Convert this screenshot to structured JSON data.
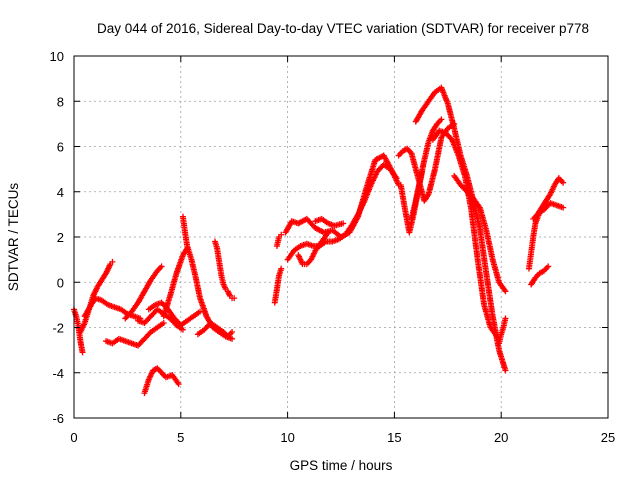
{
  "chart_data": {
    "type": "scatter",
    "title": "Day 044 of 2016, Sidereal Day-to-day VTEC variation (SDTVAR) for receiver p778",
    "xlabel": "GPS time / hours",
    "ylabel": "SDTVAR / TECUs",
    "xlim": [
      0,
      25
    ],
    "ylim": [
      -6,
      10
    ],
    "x_ticks": [
      0,
      5,
      10,
      15,
      20,
      25
    ],
    "y_ticks": [
      -6,
      -4,
      -2,
      0,
      2,
      4,
      6,
      8,
      10
    ],
    "x_tick_labels": [
      "0",
      "5",
      "10",
      "15",
      "20",
      "25"
    ],
    "y_tick_labels": [
      "-6",
      "-4",
      "-2",
      "0",
      "2",
      "4",
      "6",
      "8",
      "10"
    ],
    "grid": true,
    "legend": "none",
    "marker": "+",
    "color": "#ff0000",
    "series": [
      {
        "x": [
          0.0,
          0.1,
          0.2,
          0.3,
          0.4
        ],
        "y": [
          -1.2,
          -1.5,
          -1.9,
          -2.6,
          -3.1
        ]
      },
      {
        "x": [
          0.3,
          0.5,
          0.7,
          0.9,
          1.1,
          1.3,
          1.5,
          1.7,
          1.8
        ],
        "y": [
          -2.2,
          -1.8,
          -1.2,
          -0.6,
          -0.2,
          0.1,
          0.4,
          0.8,
          0.9
        ]
      },
      {
        "x": [
          0.5,
          0.8,
          1.0,
          1.3,
          1.6,
          1.9,
          2.2,
          2.5,
          2.8,
          3.1
        ],
        "y": [
          -1.5,
          -1.0,
          -0.7,
          -0.8,
          -1.0,
          -1.1,
          -1.2,
          -1.4,
          -1.5,
          -1.6
        ]
      },
      {
        "x": [
          1.5,
          1.8,
          2.1,
          2.4,
          2.7,
          3.0,
          3.3,
          3.6,
          3.9,
          4.2
        ],
        "y": [
          -2.6,
          -2.7,
          -2.5,
          -2.6,
          -2.7,
          -2.8,
          -2.5,
          -2.2,
          -2.0,
          -1.8
        ]
      },
      {
        "x": [
          2.4,
          2.7,
          3.0,
          3.3,
          3.6,
          3.9,
          4.1
        ],
        "y": [
          -1.6,
          -1.3,
          -0.9,
          -0.4,
          0.1,
          0.5,
          0.7
        ]
      },
      {
        "x": [
          3.0,
          3.3,
          3.6,
          3.9,
          4.2,
          4.5,
          4.8,
          5.1
        ],
        "y": [
          -1.7,
          -1.8,
          -1.5,
          -1.2,
          -1.4,
          -1.6,
          -1.9,
          -2.1
        ]
      },
      {
        "x": [
          3.5,
          3.8,
          4.1,
          4.4,
          4.7,
          5.0,
          5.3,
          5.6,
          5.9
        ],
        "y": [
          -1.2,
          -1.0,
          -0.9,
          -1.2,
          -1.6,
          -1.9,
          -1.7,
          -1.5,
          -1.3
        ]
      },
      {
        "x": [
          3.3,
          3.5,
          3.7,
          3.9,
          4.1,
          4.3,
          4.6,
          4.9
        ],
        "y": [
          -4.9,
          -4.3,
          -3.9,
          -3.8,
          -4.0,
          -4.2,
          -4.1,
          -4.5
        ]
      },
      {
        "x": [
          4.2,
          4.5,
          4.8,
          5.1,
          5.3
        ],
        "y": [
          -1.5,
          -0.6,
          0.4,
          1.2,
          1.5
        ]
      },
      {
        "x": [
          5.1,
          5.2,
          5.3,
          5.5,
          5.7,
          5.9,
          6.2,
          6.5,
          6.8,
          7.1,
          7.4
        ],
        "y": [
          2.9,
          2.2,
          1.6,
          1.0,
          0.2,
          -0.7,
          -1.5,
          -2.0,
          -2.2,
          -2.4,
          -2.5
        ]
      },
      {
        "x": [
          5.8,
          6.1,
          6.4,
          6.7,
          7.0,
          7.2,
          7.4
        ],
        "y": [
          -2.3,
          -2.1,
          -1.8,
          -2.0,
          -2.2,
          -2.4,
          -2.2
        ]
      },
      {
        "x": [
          6.6,
          6.7,
          6.8,
          6.9,
          7.0,
          7.1,
          7.2,
          7.3,
          7.4,
          7.5
        ],
        "y": [
          1.8,
          1.5,
          0.9,
          0.3,
          -0.1,
          -0.3,
          -0.4,
          -0.6,
          -0.7,
          -0.7
        ]
      },
      {
        "x": [
          9.4,
          9.5,
          9.6,
          9.7
        ],
        "y": [
          -0.9,
          -0.3,
          0.3,
          0.6
        ]
      },
      {
        "x": [
          9.5,
          9.6,
          9.7
        ],
        "y": [
          1.6,
          2.0,
          2.1
        ]
      },
      {
        "x": [
          9.9,
          10.2,
          10.5,
          10.9,
          11.3,
          11.7,
          12.1,
          12.5,
          12.9,
          13.3,
          13.7,
          14.1,
          14.5,
          14.9,
          15.2
        ],
        "y": [
          2.2,
          2.7,
          2.6,
          2.8,
          2.4,
          2.2,
          2.3,
          2.0,
          2.2,
          2.9,
          4.2,
          5.4,
          5.6,
          4.9,
          4.3
        ]
      },
      {
        "x": [
          10.0,
          10.3,
          10.6,
          10.9,
          11.2,
          11.5,
          11.8,
          12.1,
          12.4,
          12.7,
          13.0,
          13.3,
          13.6,
          13.9,
          14.2,
          14.5,
          14.8,
          15.1
        ],
        "y": [
          1.0,
          1.4,
          1.6,
          1.7,
          1.6,
          1.6,
          1.8,
          1.8,
          1.9,
          2.1,
          2.5,
          3.0,
          3.6,
          4.3,
          4.9,
          5.2,
          5.0,
          4.6
        ]
      },
      {
        "x": [
          10.5,
          10.7,
          10.9,
          11.1,
          11.3,
          11.6,
          11.9
        ],
        "y": [
          1.2,
          0.8,
          0.8,
          1.0,
          1.4,
          1.8,
          2.2
        ]
      },
      {
        "x": [
          11.3,
          11.6,
          11.9,
          12.2,
          12.6
        ],
        "y": [
          2.7,
          2.8,
          2.6,
          2.5,
          2.6
        ]
      },
      {
        "x": [
          15.2,
          15.4,
          15.6,
          15.8,
          16.0,
          16.2,
          16.4,
          16.6,
          16.9,
          17.2,
          17.5,
          17.8
        ],
        "y": [
          5.6,
          5.8,
          5.9,
          5.7,
          5.0,
          4.3,
          3.6,
          3.9,
          5.0,
          6.4,
          6.8,
          7.0
        ]
      },
      {
        "x": [
          15.3,
          15.5,
          15.7,
          15.9,
          16.1,
          16.3
        ],
        "y": [
          4.3,
          3.2,
          2.2,
          3.0,
          4.0,
          4.9
        ]
      },
      {
        "x": [
          15.8,
          16.0,
          16.2,
          16.4,
          16.6,
          16.8,
          17.0,
          17.2
        ],
        "y": [
          2.8,
          3.6,
          4.5,
          5.4,
          6.2,
          6.7,
          7.0,
          7.2
        ]
      },
      {
        "x": [
          16.0,
          16.3,
          16.6,
          16.9,
          17.2,
          17.5,
          17.8,
          18.1,
          18.4,
          18.7,
          19.0,
          19.3,
          19.6,
          19.9,
          20.2
        ],
        "y": [
          7.1,
          7.6,
          8.0,
          8.4,
          8.6,
          7.9,
          6.8,
          5.6,
          4.7,
          3.6,
          2.4,
          0.4,
          -1.5,
          -3.0,
          -3.9
        ]
      },
      {
        "x": [
          16.8,
          17.1,
          17.4,
          17.7,
          18.0,
          18.3,
          18.6,
          18.9,
          19.2,
          19.5,
          19.8
        ],
        "y": [
          6.3,
          6.7,
          6.6,
          6.3,
          5.6,
          4.7,
          3.2,
          1.0,
          -1.0,
          -2.0,
          -2.4
        ]
      },
      {
        "x": [
          17.8,
          18.1,
          18.4,
          18.7,
          19.0,
          19.3,
          19.6,
          19.9,
          20.2
        ],
        "y": [
          4.7,
          4.3,
          4.0,
          3.7,
          3.3,
          2.3,
          1.0,
          0.0,
          -0.4
        ]
      },
      {
        "x": [
          19.9,
          20.0,
          20.1,
          20.2
        ],
        "y": [
          -2.7,
          -2.3,
          -2.0,
          -1.6
        ]
      },
      {
        "x": [
          21.3,
          21.4,
          21.5,
          21.6,
          21.8,
          22.0,
          22.3,
          22.6,
          22.9
        ],
        "y": [
          0.6,
          1.3,
          2.0,
          2.6,
          3.1,
          3.2,
          3.5,
          3.4,
          3.3
        ]
      },
      {
        "x": [
          21.5,
          21.7,
          21.9,
          22.1,
          22.3,
          22.5,
          22.7,
          22.9
        ],
        "y": [
          2.8,
          3.0,
          3.3,
          3.6,
          3.9,
          4.3,
          4.6,
          4.4
        ]
      },
      {
        "x": [
          21.4,
          21.6,
          21.8,
          22.0,
          22.2
        ],
        "y": [
          -0.1,
          0.2,
          0.4,
          0.5,
          0.7
        ]
      }
    ]
  }
}
